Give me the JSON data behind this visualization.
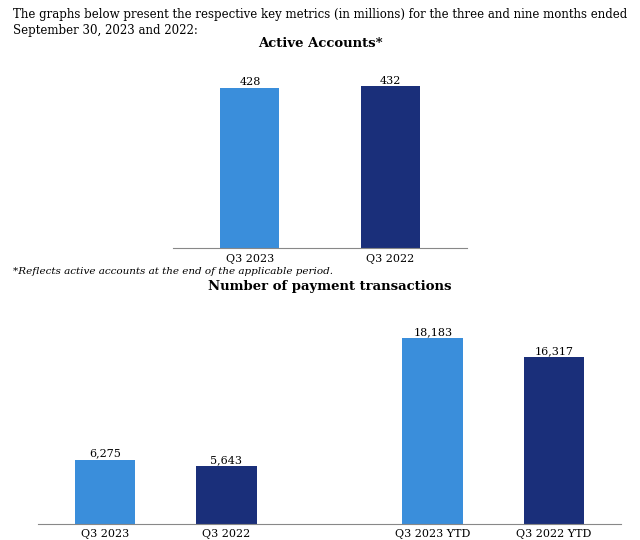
{
  "header_line1": "The graphs below present the respective key metrics (in millions) for the three and nine months ended",
  "header_line2": "September 30, 2023 and 2022:",
  "footnote_text": "*Reflects active accounts at the end of the applicable period.",
  "chart1_title": "Active Accounts*",
  "chart1_categories": [
    "Q3 2023",
    "Q3 2022"
  ],
  "chart1_values": [
    428,
    432
  ],
  "chart1_colors": [
    "#3A8EDB",
    "#1A2F7A"
  ],
  "chart2_title": "Number of payment transactions",
  "chart2_categories": [
    "Q3 2023",
    "Q3 2022",
    "Q3 2023 YTD",
    "Q3 2022 YTD"
  ],
  "chart2_values": [
    6275,
    5643,
    18183,
    16317
  ],
  "chart2_colors": [
    "#3A8EDB",
    "#1A2F7A",
    "#3A8EDB",
    "#1A2F7A"
  ],
  "chart2_labels": [
    "6,275",
    "5,643",
    "18,183",
    "16,317"
  ],
  "bg_color": "#FFFFFF",
  "text_color": "#000000",
  "title_fontsize": 9.5,
  "label_fontsize": 8,
  "tick_fontsize": 8,
  "header_fontsize": 8.5,
  "footnote_fontsize": 7.5
}
